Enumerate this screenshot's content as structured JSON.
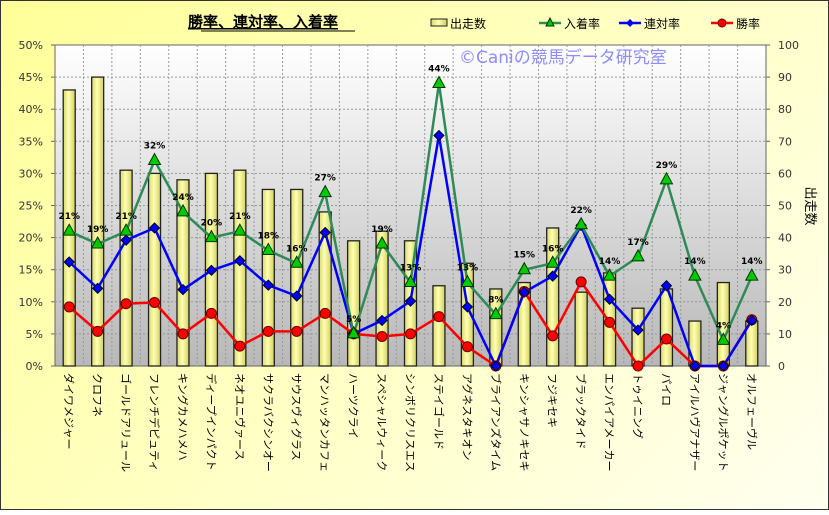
{
  "chart_data": {
    "type": "bar+line",
    "title": "勝率、連対率、入着率",
    "watermark": "©Caniの競馬データ研究室",
    "categories": [
      "ダイワメジャー",
      "クロフネ",
      "ゴールドアリュール",
      "フレンチデピュティ",
      "キングカメハメハ",
      "ディープインパクト",
      "ネオユニヴァース",
      "サクラバクシンオー",
      "サウスヴィグラス",
      "マンハッタンカフェ",
      "ハーツクライ",
      "スペシャルウィーク",
      "シンボリクリスエス",
      "ステイゴールド",
      "アグネスタキオン",
      "ブライアンズタイム",
      "キンシャサノキセキ",
      "フジキセキ",
      "ブラックタイド",
      "エンパイアメーカー",
      "トゥイニング",
      "パイロ",
      "アイルハヴアナザー",
      "ジャングルポケット",
      "オルフェーヴル"
    ],
    "left_axis": {
      "min": 0,
      "max": 50,
      "step": 5,
      "suffix": "%",
      "ticks": [
        "0%",
        "5%",
        "10%",
        "15%",
        "20%",
        "25%",
        "30%",
        "35%",
        "40%",
        "45%",
        "50%"
      ]
    },
    "right_axis": {
      "label": "出走数",
      "min": 0,
      "max": 100,
      "step": 10,
      "ticks": [
        "0",
        "10",
        "20",
        "30",
        "40",
        "50",
        "60",
        "70",
        "80",
        "90",
        "100"
      ]
    },
    "grid": true,
    "legend_position": "top-right",
    "series": [
      {
        "name": "出走数",
        "type": "bar",
        "axis": "right",
        "color": "#ffff99",
        "values": [
          86,
          90,
          61,
          60,
          58,
          60,
          61,
          55,
          55,
          48,
          39,
          42,
          39,
          25,
          32,
          24,
          26,
          43,
          23,
          29,
          18,
          24,
          14,
          26,
          14
        ]
      },
      {
        "name": "入着率",
        "type": "line",
        "axis": "left",
        "color": "#2e8b57",
        "marker": "triangle",
        "marker_color": "#00cc00",
        "values": [
          21,
          19,
          21,
          32,
          24,
          20,
          21,
          18,
          16,
          27,
          5,
          19,
          13,
          44,
          13,
          8,
          15,
          16,
          22,
          14,
          17,
          29,
          14,
          4,
          14
        ],
        "labels": [
          "21%",
          "19%",
          "21%",
          "32%",
          "24%",
          "20%",
          "21%",
          "18%",
          "16%",
          "27%",
          "5%",
          "19%",
          "13%",
          "44%",
          "13%",
          "8%",
          "15%",
          "16%",
          "22%",
          "14%",
          "17%",
          "29%",
          "14%",
          "4%",
          "14%"
        ]
      },
      {
        "name": "連対率",
        "type": "line",
        "axis": "left",
        "color": "#0000ff",
        "marker": "diamond",
        "values": [
          16.2,
          12.1,
          19.6,
          21.5,
          11.9,
          14.9,
          16.4,
          12.6,
          10.9,
          20.8,
          5.0,
          7.1,
          10.1,
          35.9,
          9.2,
          0,
          11.5,
          14.0,
          21.9,
          10.4,
          5.6,
          12.5,
          0,
          0,
          7.1
        ]
      },
      {
        "name": "勝率",
        "type": "line",
        "axis": "left",
        "color": "#ff0000",
        "marker": "circle",
        "values": [
          9.2,
          5.4,
          9.7,
          9.9,
          5.0,
          8.2,
          3.1,
          5.4,
          5.4,
          8.2,
          5.0,
          4.6,
          5.0,
          7.7,
          3.0,
          0,
          11.6,
          4.7,
          13.1,
          6.8,
          0,
          4.2,
          0,
          0,
          7.2
        ]
      }
    ]
  }
}
